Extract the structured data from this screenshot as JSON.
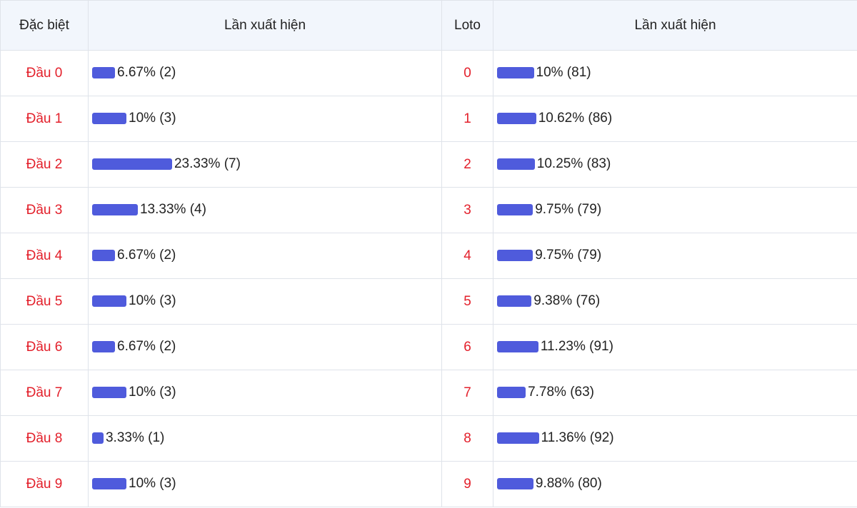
{
  "table": {
    "header": [
      "Đặc biệt",
      "Lần xuất hiện",
      "Loto",
      "Lần xuất hiện"
    ],
    "rows": [
      {
        "head": "Đầu 0",
        "special": {
          "label": "6.67% (2)",
          "percent": 6.67
        },
        "loto": "0",
        "loto_stat": {
          "label": "10% (81)",
          "percent": 10
        }
      },
      {
        "head": "Đầu 1",
        "special": {
          "label": "10% (3)",
          "percent": 10
        },
        "loto": "1",
        "loto_stat": {
          "label": "10.62% (86)",
          "percent": 10.62
        }
      },
      {
        "head": "Đầu 2",
        "special": {
          "label": "23.33% (7)",
          "percent": 23.33
        },
        "loto": "2",
        "loto_stat": {
          "label": "10.25% (83)",
          "percent": 10.25
        }
      },
      {
        "head": "Đầu 3",
        "special": {
          "label": "13.33% (4)",
          "percent": 13.33
        },
        "loto": "3",
        "loto_stat": {
          "label": "9.75% (79)",
          "percent": 9.75
        }
      },
      {
        "head": "Đầu 4",
        "special": {
          "label": "6.67% (2)",
          "percent": 6.67
        },
        "loto": "4",
        "loto_stat": {
          "label": "9.75% (79)",
          "percent": 9.75
        }
      },
      {
        "head": "Đầu 5",
        "special": {
          "label": "10% (3)",
          "percent": 10
        },
        "loto": "5",
        "loto_stat": {
          "label": "9.38% (76)",
          "percent": 9.38
        }
      },
      {
        "head": "Đầu 6",
        "special": {
          "label": "6.67% (2)",
          "percent": 6.67
        },
        "loto": "6",
        "loto_stat": {
          "label": "11.23% (91)",
          "percent": 11.23
        }
      },
      {
        "head": "Đầu 7",
        "special": {
          "label": "10% (3)",
          "percent": 10
        },
        "loto": "7",
        "loto_stat": {
          "label": "7.78% (63)",
          "percent": 7.78
        }
      },
      {
        "head": "Đầu 8",
        "special": {
          "label": "3.33% (1)",
          "percent": 3.33
        },
        "loto": "8",
        "loto_stat": {
          "label": "11.36% (92)",
          "percent": 11.36
        }
      },
      {
        "head": "Đầu 9",
        "special": {
          "label": "10% (3)",
          "percent": 10
        },
        "loto": "9",
        "loto_stat": {
          "label": "9.88% (80)",
          "percent": 9.88
        }
      }
    ]
  }
}
